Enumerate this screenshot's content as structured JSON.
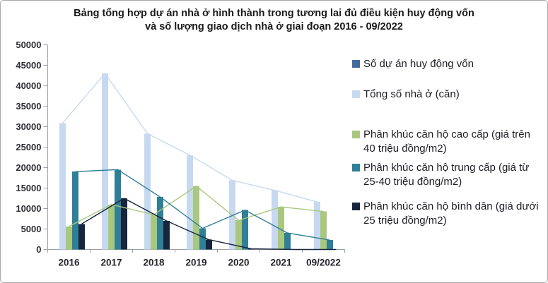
{
  "title": {
    "line1": "Bảng tổng hợp dự án nhà ở hình thành trong tương lai đủ điều kiện huy động vốn",
    "line2": "và số lượng giao dịch nhà ở giai đoạn 2016 - 09/2022"
  },
  "chart_data": {
    "type": "bar",
    "subtype": "grouped columns with a matching line overlay for each series, legend at right, no gridlines",
    "title": "Bảng tổng hợp dự án nhà ở hình thành trong tương lai đủ điều kiện huy động vốn và số lượng giao dịch nhà ở giai đoạn 2016 - 09/2022",
    "categories": [
      "2016",
      "2017",
      "2018",
      "2019",
      "2020",
      "2021",
      "09/2022"
    ],
    "series": [
      {
        "name": "Số dự án huy động vốn",
        "color": "#46699c",
        "values": [
          null,
          null,
          null,
          null,
          null,
          null,
          null
        ],
        "note": "values are tiny project counts, bars not visible at the 0-50000 axis scale"
      },
      {
        "name": "Tổng số nhà ở (căn)",
        "color": "#c7d9f0",
        "values": [
          30877,
          42991,
          28316,
          23046,
          16895,
          14443,
          11600
        ]
      },
      {
        "name": "Phân khúc căn hộ cao cấp (giá trên 40 triệu đồng/m2)",
        "color": "#a9c87e",
        "values": [
          5630,
          10987,
          8502,
          15479,
          7114,
          10404,
          9305
        ]
      },
      {
        "name": "Phân khúc căn hộ trung cấp (giá từ 25-40 triệu đồng/m2)",
        "color": "#2f7f96",
        "values": [
          19011,
          19509,
          12833,
          5171,
          9618,
          4039,
          2295
        ]
      },
      {
        "name": "Phân khúc căn hộ bình dân (giá dưới 25 triệu đồng/m2)",
        "color": "#18253e",
        "values": [
          6236,
          12495,
          6981,
          2396,
          163,
          0,
          0
        ]
      }
    ],
    "xlabel": "",
    "ylabel": "",
    "ylim": [
      0,
      50000
    ],
    "ytick_step": 5000,
    "grid": false,
    "legend_position": "right",
    "axis_color": "#9aa1a8"
  }
}
